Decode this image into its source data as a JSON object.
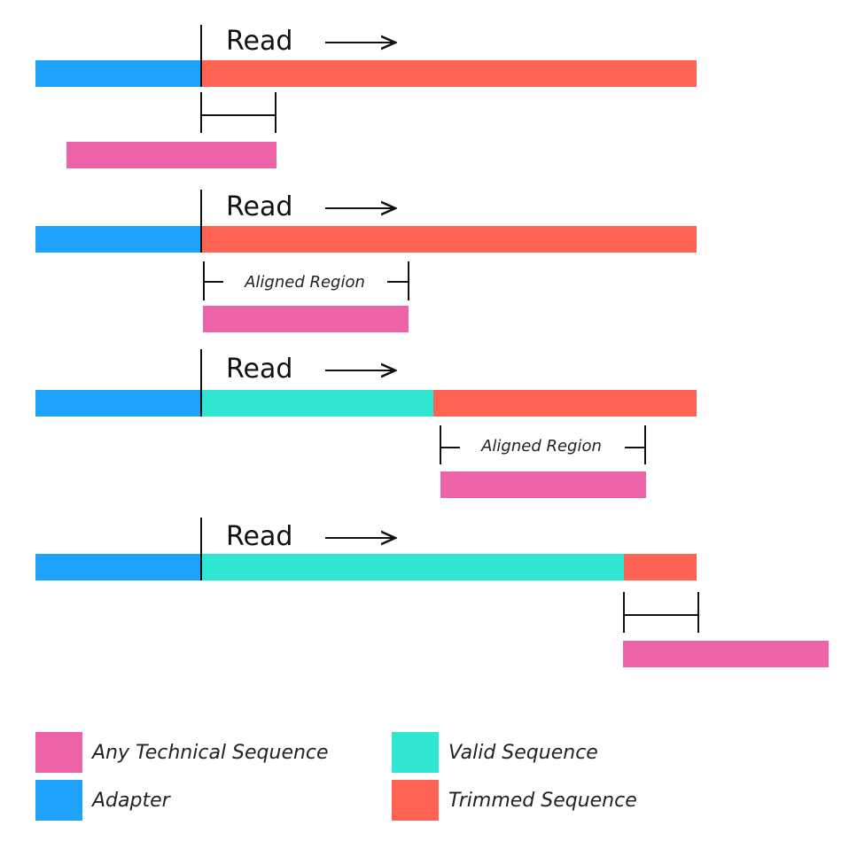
{
  "colors": {
    "technical": "#EC63A8",
    "adapter": "#1EA3FC",
    "valid": "#2EE6D1",
    "trimmed": "#FE6352",
    "ink": "#111111"
  },
  "read_label": "Read",
  "aligned_region_label": "Aligned Region",
  "cases": [
    {
      "read_segments": [
        "adapter",
        "trimmed"
      ],
      "has_region_label": false
    },
    {
      "read_segments": [
        "adapter",
        "trimmed"
      ],
      "has_region_label": true
    },
    {
      "read_segments": [
        "adapter",
        "valid",
        "trimmed"
      ],
      "has_region_label": true
    },
    {
      "read_segments": [
        "adapter",
        "valid",
        "trimmed"
      ],
      "has_region_label": false
    }
  ],
  "legend": [
    {
      "key": "technical",
      "label": "Any Technical Sequence"
    },
    {
      "key": "valid",
      "label": "Valid Sequence"
    },
    {
      "key": "adapter",
      "label": "Adapter"
    },
    {
      "key": "trimmed",
      "label": "Trimmed Sequence"
    }
  ]
}
